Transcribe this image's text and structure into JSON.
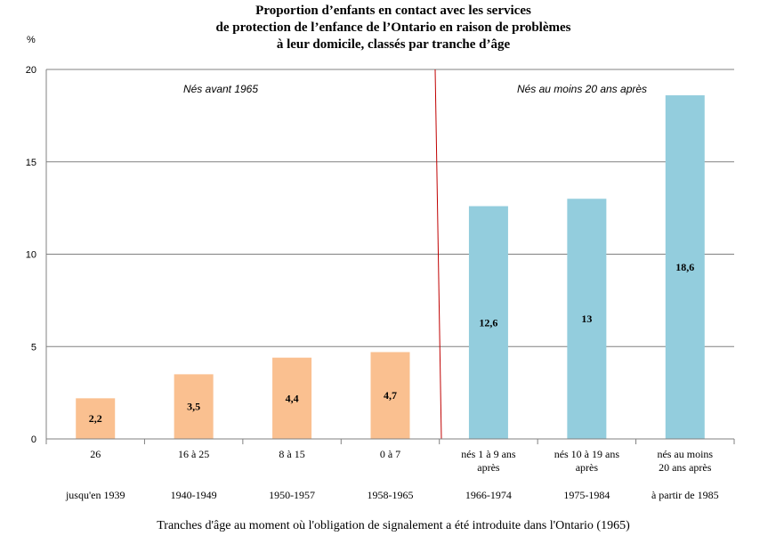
{
  "chart_data": {
    "type": "bar",
    "title_lines": [
      "Proportion d’enfants en contact avec les services",
      "de protection de l’enfance de l’Ontario en raison de problèmes",
      "à leur domicile, classés par tranche d’âge"
    ],
    "ylabel": "%",
    "xlabel": "Tranches d'âge au moment où l'obligation de signalement a été introduite dans l'Ontario (1965)",
    "ylim": [
      0,
      20
    ],
    "yticks": [
      "0",
      "5",
      "10",
      "15",
      "20"
    ],
    "grid": true,
    "categories": [
      {
        "line1": "26",
        "line2": "",
        "period": "jusqu'en 1939"
      },
      {
        "line1": "16 à 25",
        "line2": "",
        "period": "1940-1949"
      },
      {
        "line1": "8 à 15",
        "line2": "",
        "period": "1950-1957"
      },
      {
        "line1": "0 à 7",
        "line2": "",
        "period": "1958-1965"
      },
      {
        "line1": "nés 1 à 9 ans",
        "line2": "après",
        "period": "1966-1974"
      },
      {
        "line1": "nés 10 à 19 ans",
        "line2": "après",
        "period": "1975-1984"
      },
      {
        "line1": "nés au moins",
        "line2": "20 ans après",
        "period": "à partir de 1985"
      }
    ],
    "values": [
      2.2,
      3.5,
      4.4,
      4.7,
      12.6,
      13,
      18.6
    ],
    "value_labels": [
      "2,2",
      "3,5",
      "4,4",
      "4,7",
      "12,6",
      "13",
      "18,6"
    ],
    "bar_colors": [
      "#fac090",
      "#fac090",
      "#fac090",
      "#fac090",
      "#93cddd",
      "#93cddd",
      "#93cddd"
    ],
    "annotations": {
      "before": "Nés avant 1965",
      "after": "Nés au moins 20 ans après"
    },
    "divider_color": "#c00000",
    "grid_color": "#808080"
  }
}
